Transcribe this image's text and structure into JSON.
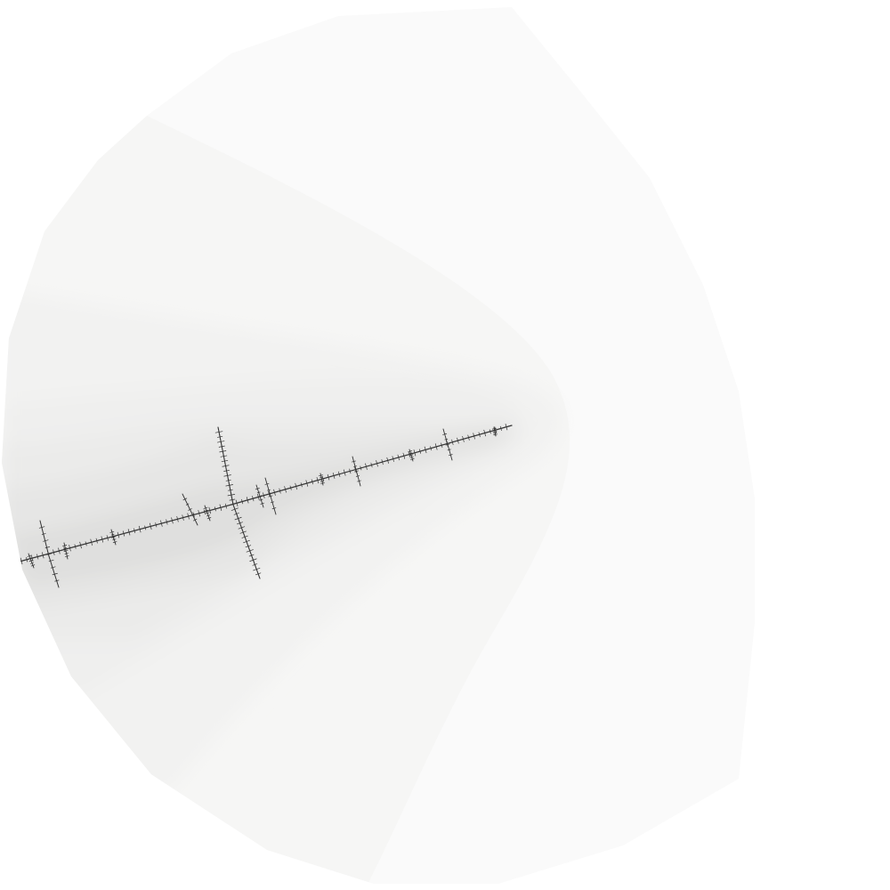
{
  "image": {
    "subject": "fractal-dendrite-render",
    "colors": {
      "background": "#ffffff",
      "outer_region": "#fafafa",
      "band_1": "#f6f6f5",
      "band_2": "#f2f2f1",
      "band_3": "#efefee",
      "band_4": "#ebebea",
      "band_5": "#e6e6e5",
      "band_6": "#dfdfde",
      "filament": "#333333"
    }
  }
}
